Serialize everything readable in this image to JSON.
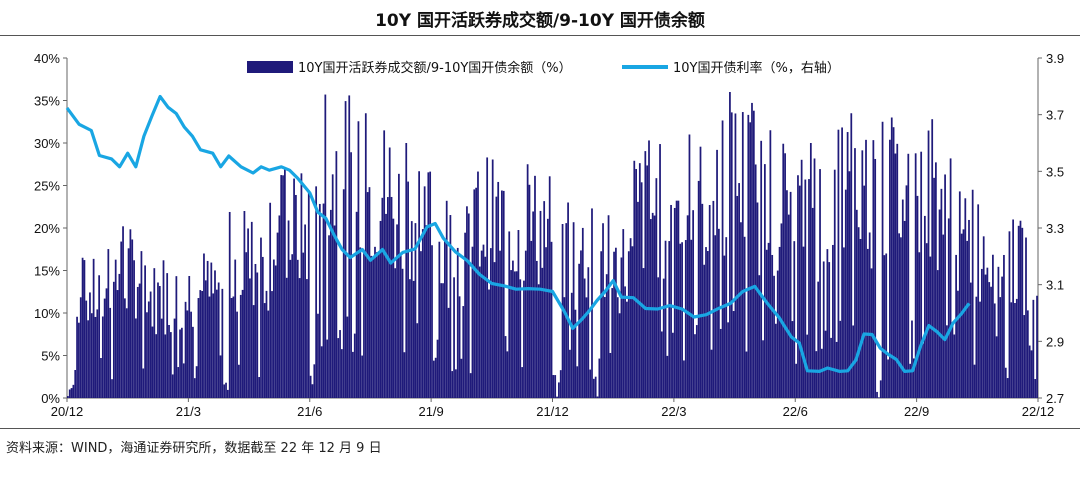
{
  "chart_data": {
    "type": "bar+line",
    "title": "10Y 国开活跃券成交额/9-10Y 国开债余额",
    "source": "资料来源：WIND，海通证券研究所，数据截至 22 年 12 月 9 日",
    "x_tick_labels": [
      "20/12",
      "21/3",
      "21/6",
      "21/9",
      "21/12",
      "22/3",
      "22/6",
      "22/9",
      "22/12"
    ],
    "y_left": {
      "ticks": [
        "0%",
        "5%",
        "10%",
        "15%",
        "20%",
        "25%",
        "30%",
        "35%",
        "40%"
      ],
      "min": 0,
      "max": 40
    },
    "y_right": {
      "ticks": [
        "2.7",
        "2.9",
        "3.1",
        "3.3",
        "3.5",
        "3.7",
        "3.9"
      ],
      "min": 2.7,
      "max": 3.9
    },
    "series": [
      {
        "name": "10Y国开活跃券成交额/9-10Y国开债余额（%）",
        "type": "bar",
        "axis": "left",
        "color": "#1f1a7a",
        "x": [
          0,
          1,
          2,
          3,
          4,
          5,
          6,
          7,
          8,
          9,
          10,
          11,
          12,
          13,
          14,
          15,
          16,
          17,
          18,
          19,
          20,
          21,
          22,
          23,
          24
        ],
        "values_monthly_peak": [
          16.5,
          20.2,
          16.2,
          17.0,
          22.0,
          27.0,
          35.7,
          33.5,
          30.0,
          23.2,
          28.3,
          27.5,
          23.0,
          21.5,
          30.3,
          31.0,
          36.0,
          31.5,
          30.0,
          33.5,
          33.0,
          32.8,
          24.5,
          21.0,
          18.8
        ]
      },
      {
        "name": "10Y国开债利率（%，右轴）",
        "type": "line",
        "axis": "right",
        "color": "#19a6e3",
        "points": [
          [
            0,
            3.72
          ],
          [
            0.3,
            3.67
          ],
          [
            0.6,
            3.64
          ],
          [
            0.8,
            3.56
          ],
          [
            1.1,
            3.54
          ],
          [
            1.3,
            3.52
          ],
          [
            1.5,
            3.56
          ],
          [
            1.7,
            3.52
          ],
          [
            1.9,
            3.62
          ],
          [
            2.1,
            3.7
          ],
          [
            2.3,
            3.76
          ],
          [
            2.5,
            3.73
          ],
          [
            2.7,
            3.7
          ],
          [
            2.9,
            3.66
          ],
          [
            3.1,
            3.62
          ],
          [
            3.3,
            3.58
          ],
          [
            3.6,
            3.56
          ],
          [
            3.8,
            3.52
          ],
          [
            4.0,
            3.55
          ],
          [
            4.3,
            3.52
          ],
          [
            4.6,
            3.49
          ],
          [
            4.8,
            3.52
          ],
          [
            5.0,
            3.5
          ],
          [
            5.3,
            3.52
          ],
          [
            5.5,
            3.5
          ],
          [
            5.7,
            3.48
          ],
          [
            6.0,
            3.42
          ],
          [
            6.2,
            3.36
          ],
          [
            6.4,
            3.33
          ],
          [
            6.6,
            3.28
          ],
          [
            6.8,
            3.22
          ],
          [
            7.0,
            3.2
          ],
          [
            7.3,
            3.22
          ],
          [
            7.5,
            3.19
          ],
          [
            7.8,
            3.22
          ],
          [
            8.0,
            3.18
          ],
          [
            8.3,
            3.21
          ],
          [
            8.6,
            3.23
          ],
          [
            8.9,
            3.3
          ],
          [
            9.1,
            3.32
          ],
          [
            9.3,
            3.26
          ],
          [
            9.6,
            3.22
          ],
          [
            9.9,
            3.18
          ],
          [
            10.2,
            3.14
          ],
          [
            10.5,
            3.1
          ],
          [
            10.8,
            3.1
          ],
          [
            11.1,
            3.08
          ],
          [
            11.4,
            3.09
          ],
          [
            11.7,
            3.08
          ],
          [
            12.0,
            3.08
          ],
          [
            12.3,
            3.0
          ],
          [
            12.5,
            2.95
          ],
          [
            12.7,
            2.97
          ],
          [
            12.9,
            3.01
          ],
          [
            13.1,
            3.04
          ],
          [
            13.3,
            3.08
          ],
          [
            13.5,
            3.11
          ],
          [
            13.7,
            3.06
          ],
          [
            14.0,
            3.05
          ],
          [
            14.3,
            3.02
          ],
          [
            14.6,
            3.01
          ],
          [
            14.9,
            3.03
          ],
          [
            15.2,
            3.01
          ],
          [
            15.5,
            2.99
          ],
          [
            15.8,
            2.99
          ],
          [
            16.1,
            3.02
          ],
          [
            16.4,
            3.03
          ],
          [
            16.7,
            3.08
          ],
          [
            17.0,
            3.09
          ],
          [
            17.3,
            3.04
          ],
          [
            17.6,
            2.98
          ],
          [
            17.9,
            2.92
          ],
          [
            18.1,
            2.89
          ],
          [
            18.3,
            2.8
          ],
          [
            18.6,
            2.79
          ],
          [
            18.8,
            2.81
          ],
          [
            19.1,
            2.79
          ],
          [
            19.3,
            2.8
          ],
          [
            19.5,
            2.83
          ],
          [
            19.7,
            2.93
          ],
          [
            19.9,
            2.92
          ],
          [
            20.1,
            2.88
          ],
          [
            20.3,
            2.85
          ],
          [
            20.5,
            2.84
          ],
          [
            20.7,
            2.79
          ],
          [
            20.9,
            2.8
          ],
          [
            21.1,
            2.88
          ],
          [
            21.3,
            2.96
          ],
          [
            21.5,
            2.93
          ],
          [
            21.7,
            2.91
          ],
          [
            21.9,
            2.96
          ],
          [
            22.1,
            3.0
          ],
          [
            22.3,
            3.03
          ]
        ]
      }
    ],
    "legend": "top"
  }
}
